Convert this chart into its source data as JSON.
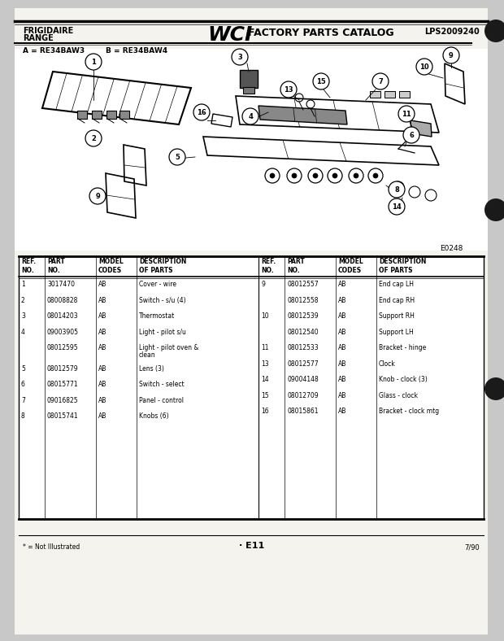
{
  "title_left1": "FRIGIDAIRE",
  "title_left2": "RANGE",
  "title_center_logo": "WCI",
  "title_center_text": "FACTORY PARTS CATALOG",
  "title_right": "LPS2009240",
  "model_line1": "A = RE34BAW3",
  "model_line2": "B = RE34BAW4",
  "diagram_code": "E0248",
  "page_num": "E11",
  "date": "7/90",
  "footnote": "* = Not Illustrated",
  "bg_color": "#c8c8c8",
  "paper_color": "#f5f3ee",
  "parts_left": [
    [
      "1",
      "3017470",
      "AB",
      "Cover - wire"
    ],
    [
      "2",
      "08008828",
      "AB",
      "Switch - s/u (4)"
    ],
    [
      "3",
      "08014203",
      "AB",
      "Thermostat"
    ],
    [
      "4",
      "09003905",
      "AB",
      "Light - pilot s/u"
    ],
    [
      "",
      "08012595",
      "AB",
      "Light - pilot oven &\nclean"
    ],
    [
      "5",
      "08012579",
      "AB",
      "Lens (3)"
    ],
    [
      "6",
      "08015771",
      "AB",
      "Switch - select"
    ],
    [
      "7",
      "09016825",
      "AB",
      "Panel - control"
    ],
    [
      "8",
      "08015741",
      "AB",
      "Knobs (6)"
    ]
  ],
  "parts_right": [
    [
      "9",
      "08012557",
      "AB",
      "End cap LH"
    ],
    [
      "",
      "08012558",
      "AB",
      "End cap RH"
    ],
    [
      "10",
      "08012539",
      "AB",
      "Support RH"
    ],
    [
      "",
      "08012540",
      "AB",
      "Support LH"
    ],
    [
      "11",
      "08012533",
      "AB",
      "Bracket - hinge"
    ],
    [
      "13",
      "08012577",
      "AB",
      "Clock"
    ],
    [
      "14",
      "09004148",
      "AB",
      "Knob - clock (3)"
    ],
    [
      "15",
      "08012709",
      "AB",
      "Glass - clock"
    ],
    [
      "16",
      "08015861",
      "AB",
      "Bracket - clock mtg"
    ]
  ]
}
